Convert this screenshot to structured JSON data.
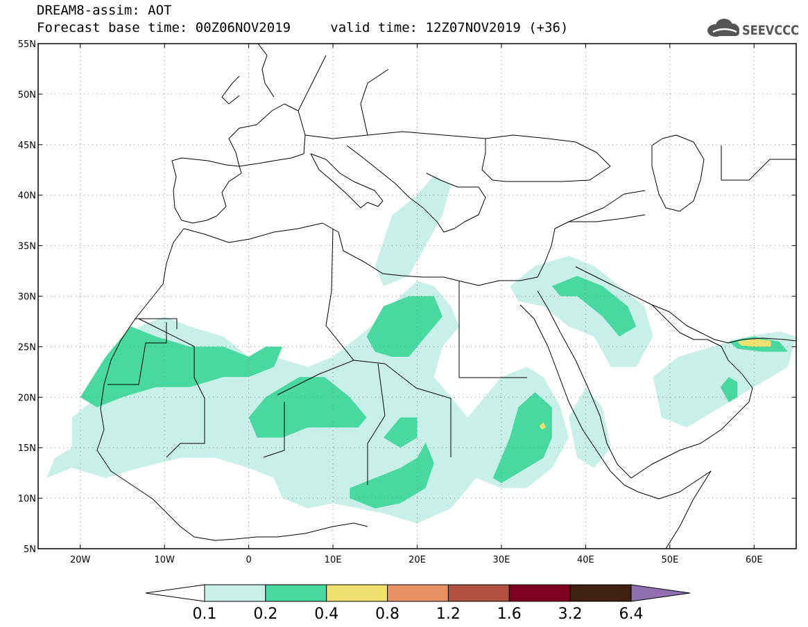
{
  "header": {
    "title": "DREAM8-assim: AOT",
    "base_time_label": "Forecast base time: 00Z06NOV2019",
    "valid_time_label": "valid time: 12Z07NOV2019 (+36)"
  },
  "logo": {
    "text": "SEEVCCC",
    "icon": "cloud-icon",
    "color": "#555555"
  },
  "map": {
    "lon_range": [
      -25,
      65
    ],
    "lat_range": [
      5,
      55
    ],
    "lat_ticks": [
      {
        "value": 55,
        "label": "55N"
      },
      {
        "value": 50,
        "label": "50N"
      },
      {
        "value": 45,
        "label": "45N"
      },
      {
        "value": 40,
        "label": "40N"
      },
      {
        "value": 35,
        "label": "35N"
      },
      {
        "value": 30,
        "label": "30N"
      },
      {
        "value": 25,
        "label": "25N"
      },
      {
        "value": 20,
        "label": "20N"
      },
      {
        "value": 15,
        "label": "15N"
      },
      {
        "value": 10,
        "label": "10N"
      },
      {
        "value": 5,
        "label": "5N"
      }
    ],
    "lon_ticks": [
      {
        "value": -20,
        "label": "20W"
      },
      {
        "value": -10,
        "label": "10W"
      },
      {
        "value": 0,
        "label": "0"
      },
      {
        "value": 10,
        "label": "10E"
      },
      {
        "value": 20,
        "label": "20E"
      },
      {
        "value": 30,
        "label": "30E"
      },
      {
        "value": 40,
        "label": "40E"
      },
      {
        "value": 50,
        "label": "50E"
      },
      {
        "value": 60,
        "label": "60E"
      }
    ],
    "grid": true,
    "aot_regions": [
      {
        "level": 1,
        "points": [
          [
            -21,
            18
          ],
          [
            -18,
            20
          ],
          [
            -16,
            24
          ],
          [
            -13,
            27
          ],
          [
            -10,
            28
          ],
          [
            -7,
            27
          ],
          [
            -3,
            26
          ],
          [
            0,
            24
          ],
          [
            3,
            24
          ],
          [
            7,
            23
          ],
          [
            10,
            24
          ],
          [
            13,
            26
          ],
          [
            16,
            28
          ],
          [
            18,
            30
          ],
          [
            20,
            31.5
          ],
          [
            22,
            31
          ],
          [
            24,
            29
          ],
          [
            25,
            27
          ],
          [
            23,
            25
          ],
          [
            22,
            22
          ],
          [
            24,
            20
          ],
          [
            26,
            18
          ],
          [
            28,
            20
          ],
          [
            30,
            22
          ],
          [
            33,
            23
          ],
          [
            35,
            22
          ],
          [
            37,
            19
          ],
          [
            38,
            16
          ],
          [
            36,
            13
          ],
          [
            33,
            11
          ],
          [
            30,
            11
          ],
          [
            27,
            12
          ],
          [
            24,
            9
          ],
          [
            20,
            7.5
          ],
          [
            16,
            8.5
          ],
          [
            13,
            9
          ],
          [
            10,
            9.5
          ],
          [
            7,
            9
          ],
          [
            4,
            10
          ],
          [
            3,
            12
          ],
          [
            0,
            13
          ],
          [
            -4,
            14
          ],
          [
            -8,
            14
          ],
          [
            -13,
            13
          ],
          [
            -17,
            12
          ],
          [
            -21,
            13
          ],
          [
            -24,
            12
          ],
          [
            -23,
            14
          ],
          [
            -21,
            15
          ]
        ]
      },
      {
        "level": 1,
        "points": [
          [
            15,
            33
          ],
          [
            17,
            38
          ],
          [
            20,
            40
          ],
          [
            22,
            42
          ],
          [
            24,
            41
          ],
          [
            23,
            38
          ],
          [
            21,
            35
          ],
          [
            19,
            32
          ],
          [
            16,
            31
          ]
        ]
      },
      {
        "level": 1,
        "points": [
          [
            31,
            31
          ],
          [
            34,
            33
          ],
          [
            38,
            34
          ],
          [
            41,
            33
          ],
          [
            44,
            31
          ],
          [
            47,
            29
          ],
          [
            48,
            26
          ],
          [
            46,
            23
          ],
          [
            43,
            23
          ],
          [
            41,
            26
          ],
          [
            38,
            27
          ],
          [
            35,
            29
          ],
          [
            32,
            29.5
          ]
        ]
      },
      {
        "level": 1,
        "points": [
          [
            38,
            18
          ],
          [
            40,
            21
          ],
          [
            42,
            19
          ],
          [
            43,
            15
          ],
          [
            41,
            13
          ],
          [
            39,
            14
          ]
        ]
      },
      {
        "level": 1,
        "points": [
          [
            48,
            22
          ],
          [
            51,
            24
          ],
          [
            55,
            25
          ],
          [
            59,
            26
          ],
          [
            63,
            26.5
          ],
          [
            65,
            26
          ],
          [
            64,
            23
          ],
          [
            60,
            21
          ],
          [
            56,
            19
          ],
          [
            52,
            17
          ],
          [
            49,
            18
          ]
        ]
      }
    ],
    "aot_core_regions": [
      {
        "level": 2,
        "points": [
          [
            -20,
            20
          ],
          [
            -17,
            24
          ],
          [
            -14,
            27
          ],
          [
            -11,
            26
          ],
          [
            -7,
            25
          ],
          [
            -3,
            25
          ],
          [
            0,
            24
          ],
          [
            2,
            25
          ],
          [
            4,
            25
          ],
          [
            3,
            23
          ],
          [
            0,
            22
          ],
          [
            -3,
            22
          ],
          [
            -7,
            21
          ],
          [
            -11,
            21
          ],
          [
            -15,
            20
          ],
          [
            -18,
            19
          ]
        ]
      },
      {
        "level": 2,
        "points": [
          [
            0,
            18
          ],
          [
            2,
            20
          ],
          [
            6,
            22
          ],
          [
            9,
            22
          ],
          [
            12,
            20
          ],
          [
            14,
            18
          ],
          [
            13,
            17
          ],
          [
            10,
            17
          ],
          [
            7,
            17
          ],
          [
            4,
            16
          ],
          [
            1,
            16
          ]
        ]
      },
      {
        "level": 2,
        "points": [
          [
            14,
            26
          ],
          [
            16,
            29
          ],
          [
            19,
            30
          ],
          [
            22,
            30
          ],
          [
            23,
            28
          ],
          [
            21,
            26
          ],
          [
            19,
            24
          ],
          [
            17,
            24
          ],
          [
            15,
            24.5
          ]
        ]
      },
      {
        "level": 2,
        "points": [
          [
            12,
            11
          ],
          [
            15,
            12
          ],
          [
            18,
            13
          ],
          [
            20,
            14
          ],
          [
            21,
            15.5
          ],
          [
            22,
            13.5
          ],
          [
            21,
            11
          ],
          [
            18,
            9.5
          ],
          [
            15,
            9
          ],
          [
            12,
            10
          ]
        ]
      },
      {
        "level": 2,
        "points": [
          [
            29,
            12
          ],
          [
            31,
            16
          ],
          [
            32,
            19
          ],
          [
            34,
            20.5
          ],
          [
            36,
            19
          ],
          [
            36,
            16
          ],
          [
            35,
            14
          ],
          [
            33,
            13
          ],
          [
            30,
            11.5
          ]
        ]
      },
      {
        "level": 2,
        "points": [
          [
            16,
            16
          ],
          [
            18,
            18
          ],
          [
            20,
            18
          ],
          [
            20,
            16
          ],
          [
            18,
            15
          ]
        ]
      },
      {
        "level": 2,
        "points": [
          [
            36,
            31
          ],
          [
            39,
            32
          ],
          [
            42,
            31
          ],
          [
            45,
            29
          ],
          [
            46,
            27
          ],
          [
            44,
            26
          ],
          [
            42,
            28
          ],
          [
            39,
            30
          ],
          [
            37,
            30
          ]
        ]
      },
      {
        "level": 2,
        "points": [
          [
            56,
            21
          ],
          [
            57,
            22
          ],
          [
            58,
            21.5
          ],
          [
            58,
            20
          ],
          [
            57,
            19.5
          ]
        ]
      },
      {
        "level": 2,
        "points": [
          [
            57,
            25.5
          ],
          [
            60,
            26
          ],
          [
            63,
            25.5
          ],
          [
            64,
            24.5
          ],
          [
            61,
            24.5
          ],
          [
            58,
            24.8
          ]
        ]
      }
    ],
    "aot_peak_regions": [
      {
        "level": 3,
        "points": [
          [
            58,
            25.5
          ],
          [
            60,
            25.8
          ],
          [
            62,
            25.6
          ],
          [
            62,
            25
          ],
          [
            60,
            25
          ],
          [
            58.5,
            25.1
          ]
        ]
      },
      {
        "level": 3,
        "points": [
          [
            34.5,
            17.2
          ],
          [
            35,
            17.5
          ],
          [
            35.3,
            17
          ],
          [
            34.8,
            16.8
          ]
        ]
      }
    ]
  },
  "colorbar": {
    "colors": [
      "#ffffff",
      "#c8f0e8",
      "#48d8a0",
      "#f0e070",
      "#e89060",
      "#b05040",
      "#800020",
      "#402010",
      "#9070b0"
    ],
    "labels": [
      "0.1",
      "0.2",
      "0.4",
      "0.8",
      "1.2",
      "1.6",
      "3.2",
      "6.4"
    ]
  }
}
